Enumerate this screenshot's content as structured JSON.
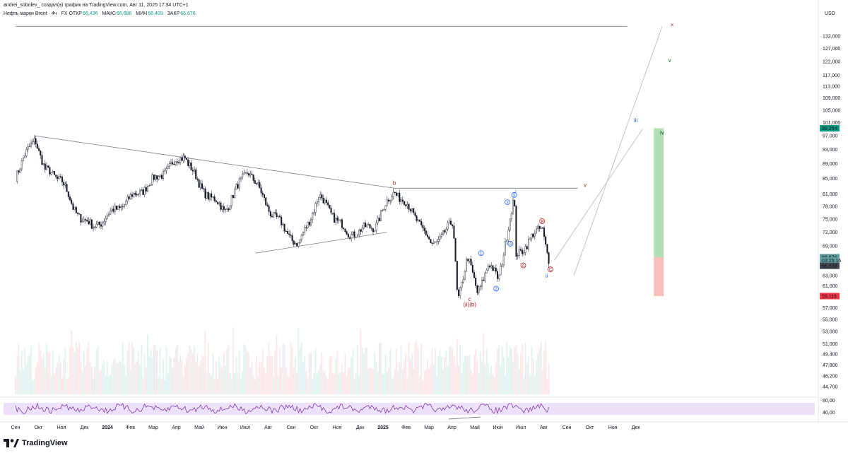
{
  "header": {
    "author_line": "andrei_sobolev_ создал(а) график на TradingView.com, Авг 11, 2025 17:34 UTC+1",
    "symbol": "Нефть марки Brent · 4ч · FX",
    "open_label": "ОТКР",
    "open_value": "66,436",
    "high_label": "МАКС",
    "high_value": "66,686",
    "low_label": "МИН",
    "low_value": "66,409",
    "close_label": "ЗАКР",
    "close_value": "66,676"
  },
  "currency": "USD",
  "price_axis": {
    "ticks": [
      132000,
      127000,
      122000,
      117000,
      113000,
      109000,
      105000,
      101000,
      97000,
      93000,
      89000,
      85000,
      81000,
      78000,
      75000,
      72000,
      69000,
      66000,
      63000,
      61000,
      57000,
      55000,
      53000,
      51000,
      49400,
      47800,
      46200,
      44700
    ],
    "labels": [
      "132,000",
      "127,000",
      "122,000",
      "117,000",
      "113,000",
      "109,000",
      "105,000",
      "101,000",
      "97,000",
      "93,000",
      "89,000",
      "85,000",
      "81,000",
      "78,000",
      "75,000",
      "72,000",
      "69,000",
      "",
      "63,000",
      "61,000",
      "57,000",
      "55,000",
      "53,000",
      "51,000",
      "49,400",
      "47,800",
      "46,200",
      "44,700"
    ],
    "badges": [
      {
        "text": "99,264",
        "value": 99264,
        "color": "#089981"
      },
      {
        "text": "66,676",
        "value": 66676,
        "color": "#5f9ea0"
      },
      {
        "text": "03:25:16",
        "value": 66000,
        "color": "#5f9ea0"
      },
      {
        "text": "66,638",
        "value": 64900,
        "color": "#434651"
      },
      {
        "text": "59,116",
        "value": 59116,
        "color": "#f23645"
      }
    ]
  },
  "rsi": {
    "label_high": "80,00",
    "label_low": "40,00",
    "band_color": "#ede0fb",
    "line_color": "#7e3ba8"
  },
  "time_axis": {
    "labels": [
      "Сен",
      "Окт",
      "Ноя",
      "Дек",
      "2024",
      "Фев",
      "Мар",
      "Апр",
      "Май",
      "Июн",
      "Июл",
      "Авг",
      "Сен",
      "Окт",
      "Ноя",
      "Дек",
      "2025",
      "Фев",
      "Мар",
      "Апр",
      "Май",
      "Июн",
      "Июл",
      "Авг",
      "Сен",
      "Окт",
      "Ноя",
      "Дек"
    ],
    "bold": [
      "2024",
      "2025"
    ]
  },
  "wave_labels": {
    "b": "b",
    "v_red": "v",
    "iii": "iii",
    "v_top": "v",
    "iv": "iv",
    "ii": "ii",
    "x_mark": "×",
    "c_bottom": "c",
    "ii_b": "(ii)(b)",
    "circ_1": "1",
    "circ_2": "2",
    "circ_3": "3",
    "circ_4": "4",
    "circ_5": "5",
    "circ_a": "A",
    "circ_b": "B",
    "circ_c": "C",
    "i_top": "i"
  },
  "colors": {
    "up": "#089981",
    "down": "#f23645",
    "wave_blue": "#2962ff",
    "wave_red": "#b71c1c",
    "trend_line": "#787b86"
  },
  "chart_data": {
    "type": "candlestick",
    "title": "Нефть марки Brent · 4ч · FX",
    "symbol": "Brent",
    "timeframe": "4h",
    "x_range": [
      "2023-09",
      "2025-12"
    ],
    "y_scale": "log",
    "ylim": [
      44700,
      135000
    ],
    "approx_close_path": [
      {
        "date": "2023-09-01",
        "close": 86000
      },
      {
        "date": "2023-09-27",
        "close": 96500
      },
      {
        "date": "2023-10-10",
        "close": 87000
      },
      {
        "date": "2023-11-01",
        "close": 85000
      },
      {
        "date": "2023-11-16",
        "close": 77500
      },
      {
        "date": "2023-12-12",
        "close": 73000
      },
      {
        "date": "2024-01-10",
        "close": 77000
      },
      {
        "date": "2024-02-15",
        "close": 82000
      },
      {
        "date": "2024-04-12",
        "close": 91500
      },
      {
        "date": "2024-05-02",
        "close": 83000
      },
      {
        "date": "2024-06-04",
        "close": 77000
      },
      {
        "date": "2024-07-05",
        "close": 87500
      },
      {
        "date": "2024-08-05",
        "close": 76500
      },
      {
        "date": "2024-09-10",
        "close": 69000
      },
      {
        "date": "2024-10-07",
        "close": 80500
      },
      {
        "date": "2024-11-15",
        "close": 71500
      },
      {
        "date": "2024-12-20",
        "close": 73500
      },
      {
        "date": "2025-01-15",
        "close": 82000
      },
      {
        "date": "2025-02-15",
        "close": 75000
      },
      {
        "date": "2025-03-05",
        "close": 69000
      },
      {
        "date": "2025-04-03",
        "close": 74000
      },
      {
        "date": "2025-04-09",
        "close": 58500
      },
      {
        "date": "2025-04-22",
        "close": 66500
      },
      {
        "date": "2025-05-05",
        "close": 60000
      },
      {
        "date": "2025-05-20",
        "close": 65000
      },
      {
        "date": "2025-06-02",
        "close": 62500
      },
      {
        "date": "2025-06-23",
        "close": 80000
      },
      {
        "date": "2025-06-25",
        "close": 67000
      },
      {
        "date": "2025-07-10",
        "close": 69500
      },
      {
        "date": "2025-07-30",
        "close": 73500
      },
      {
        "date": "2025-08-08",
        "close": 66000
      }
    ],
    "trendlines": [
      {
        "name": "upper",
        "from": {
          "date": "2023-09-27",
          "price": 97000
        },
        "to": {
          "date": "2025-01-15",
          "price": 82500
        }
      },
      {
        "name": "lower",
        "from": {
          "date": "2024-07-15",
          "price": 67500
        },
        "to": {
          "date": "2025-01-05",
          "price": 72000
        }
      },
      {
        "name": "horizontal",
        "from": {
          "date": "2025-01-15",
          "price": 82500
        },
        "to": {
          "date": "2025-09-15",
          "price": 82500
        }
      },
      {
        "name": "top-horizontal",
        "from": {
          "date": "2023-09-01",
          "price": 136000
        },
        "to": {
          "date": "2025-11-20",
          "price": 136000
        }
      }
    ],
    "projection": {
      "target_high": 99264,
      "entry": 66676,
      "stop": 59116,
      "profit_color": "#a5dba9",
      "loss_color": "#f7b4b4"
    }
  }
}
